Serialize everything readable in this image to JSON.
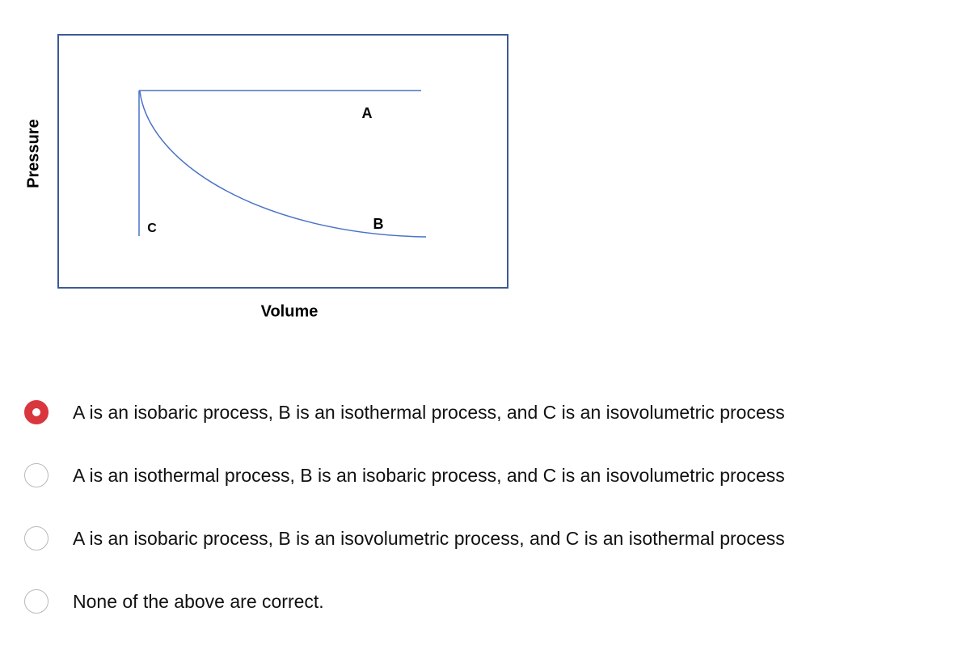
{
  "diagram": {
    "y_axis_label": "Pressure",
    "x_axis_label": "Volume",
    "curve_labels": {
      "a": "A",
      "b": "B",
      "c": "C"
    }
  },
  "options": [
    {
      "text": "A is an isobaric process, B is an isothermal process, and C is an isovolumetric process",
      "selected": true
    },
    {
      "text": "A is an isothermal process, B is an isobaric process, and C is an isovolumetric process",
      "selected": false
    },
    {
      "text": "A is an isobaric process, B is an isovolumetric process, and C is an isothermal process",
      "selected": false
    },
    {
      "text": "None of the above are correct.",
      "selected": false
    }
  ]
}
